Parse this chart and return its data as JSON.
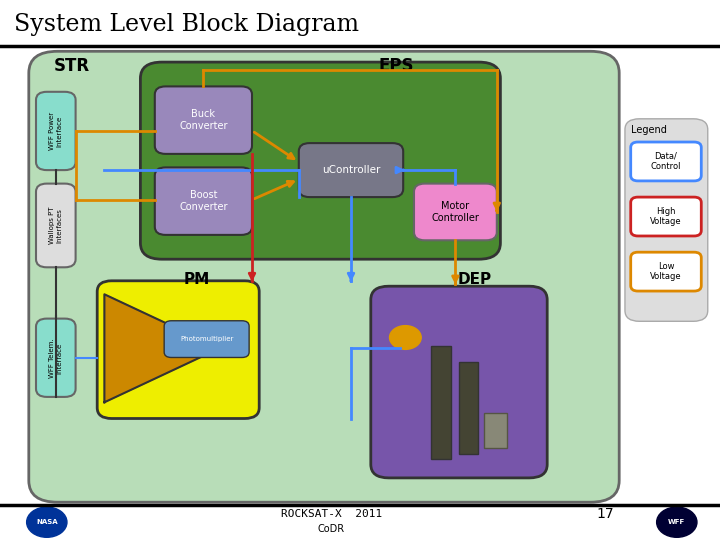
{
  "title": "System Level Block Diagram",
  "str_label": "STR",
  "eps_label": "EPS",
  "pm_label": "PM",
  "dep_label": "DEP",
  "legend_title": "Legend",
  "footer_year": "2011",
  "footer_codr": "CoDR",
  "page_num": "17",
  "arrow_blue": "#4488ff",
  "arrow_red": "#cc2222",
  "arrow_orange": "#dd8800",
  "outer_bg": "#b8ddb8",
  "outer_ec": "#666666",
  "eps_bg": "#4a8a30",
  "eps_ec": "#333333",
  "buck_bg": "#9988bb",
  "boost_bg": "#9988bb",
  "uc_bg": "#777788",
  "wff_power_bg": "#88ddcc",
  "wallops_bg": "#dddddd",
  "wff_telem_bg": "#88ddcc",
  "pm_bg": "#eeee00",
  "photomult_bg": "#6699cc",
  "motor_bg": "#ee88cc",
  "dep_bg": "#7755aa",
  "legend_bg": "#dddddd",
  "legend_ec": "#aaaaaa"
}
